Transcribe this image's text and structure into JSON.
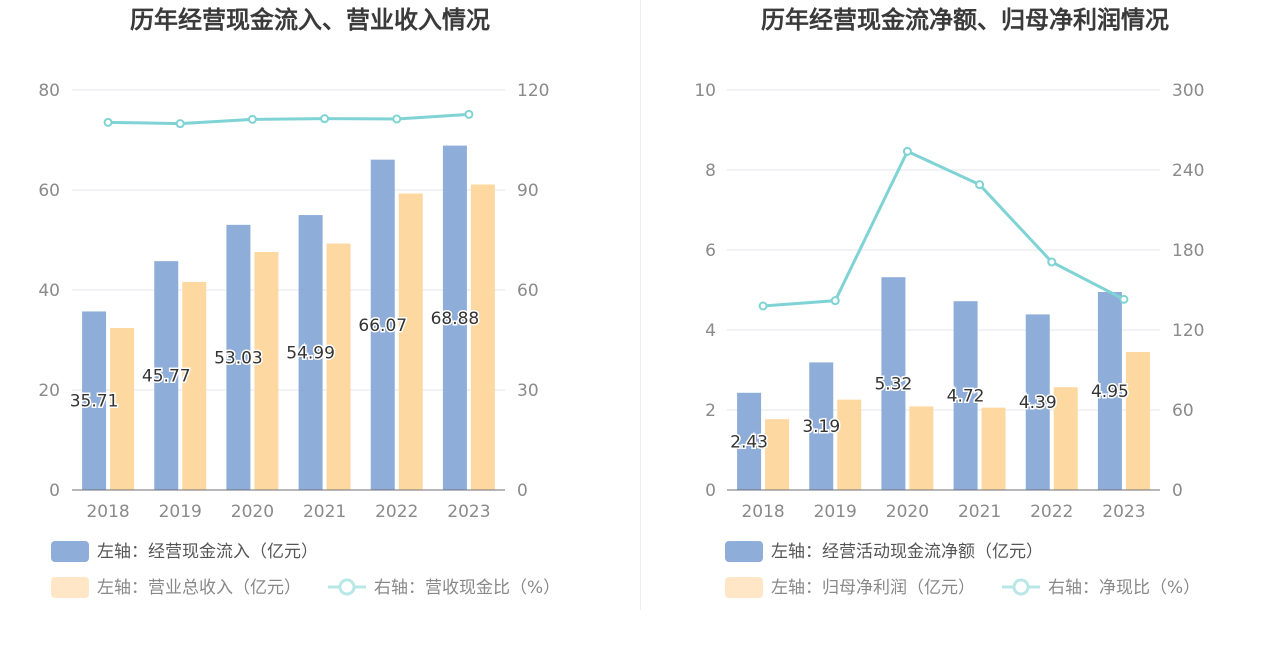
{
  "charts": [
    {
      "title": "历年经营现金流入、营业收入情况",
      "legend": {
        "bar1": "左轴：经营现金流入（亿元）",
        "bar2": "左轴：营业总收入（亿元）",
        "line": "右轴：营收现金比（%）"
      }
    },
    {
      "title": "历年经营现金流净额、归母净利润情况",
      "legend": {
        "bar1": "左轴：经营活动现金流净额（亿元）",
        "bar2": "左轴：归母净利润（亿元）",
        "line": "右轴：净现比（%）"
      }
    }
  ],
  "chart_data": [
    {
      "type": "bar",
      "title": "历年经营现金流入、营业收入情况",
      "categories": [
        "2018",
        "2019",
        "2020",
        "2021",
        "2022",
        "2023"
      ],
      "y_left": {
        "min": 0,
        "max": 80,
        "ticks": [
          0,
          20,
          40,
          60,
          80
        ]
      },
      "y_right": {
        "min": 0,
        "max": 120,
        "ticks": [
          0,
          30,
          60,
          90,
          120
        ]
      },
      "series": [
        {
          "name": "左轴：经营现金流入（亿元）",
          "axis": "left",
          "kind": "bar",
          "color": "#8eadd9",
          "values": [
            35.71,
            45.77,
            53.03,
            54.99,
            66.07,
            68.88
          ],
          "labels": [
            "35.71",
            "45.77",
            "53.03",
            "54.99",
            "66.07",
            "68.88"
          ]
        },
        {
          "name": "左轴：营业总收入（亿元）",
          "axis": "left",
          "kind": "bar",
          "color": "#fdd9a1",
          "values": [
            32.4,
            41.6,
            47.6,
            49.3,
            59.3,
            61.1
          ]
        },
        {
          "name": "右轴：营收现金比（%）",
          "axis": "right",
          "kind": "line",
          "color": "#7fd3d5",
          "values": [
            110.3,
            109.9,
            111.2,
            111.4,
            111.3,
            112.7
          ]
        }
      ],
      "grid": true,
      "legend_position": "bottom"
    },
    {
      "type": "bar",
      "title": "历年经营现金流净额、归母净利润情况",
      "categories": [
        "2018",
        "2019",
        "2020",
        "2021",
        "2022",
        "2023"
      ],
      "y_left": {
        "min": 0,
        "max": 10,
        "ticks": [
          0,
          2,
          4,
          6,
          8,
          10
        ]
      },
      "y_right": {
        "min": 0,
        "max": 300,
        "ticks": [
          0,
          60,
          120,
          180,
          240,
          300
        ]
      },
      "series": [
        {
          "name": "左轴：经营活动现金流净额（亿元）",
          "axis": "left",
          "kind": "bar",
          "color": "#8eadd9",
          "values": [
            2.43,
            3.19,
            5.32,
            4.72,
            4.39,
            4.95
          ],
          "labels": [
            "2.43",
            "3.19",
            "5.32",
            "4.72",
            "4.39",
            "4.95"
          ]
        },
        {
          "name": "左轴：归母净利润（亿元）",
          "axis": "left",
          "kind": "bar",
          "color": "#fdd9a1",
          "values": [
            1.77,
            2.26,
            2.09,
            2.06,
            2.57,
            3.45
          ]
        },
        {
          "name": "右轴：净现比（%）",
          "axis": "right",
          "kind": "line",
          "color": "#7fd3d5",
          "values": [
            138,
            142,
            254,
            229,
            171,
            143
          ]
        }
      ],
      "grid": true,
      "legend_position": "bottom"
    }
  ]
}
